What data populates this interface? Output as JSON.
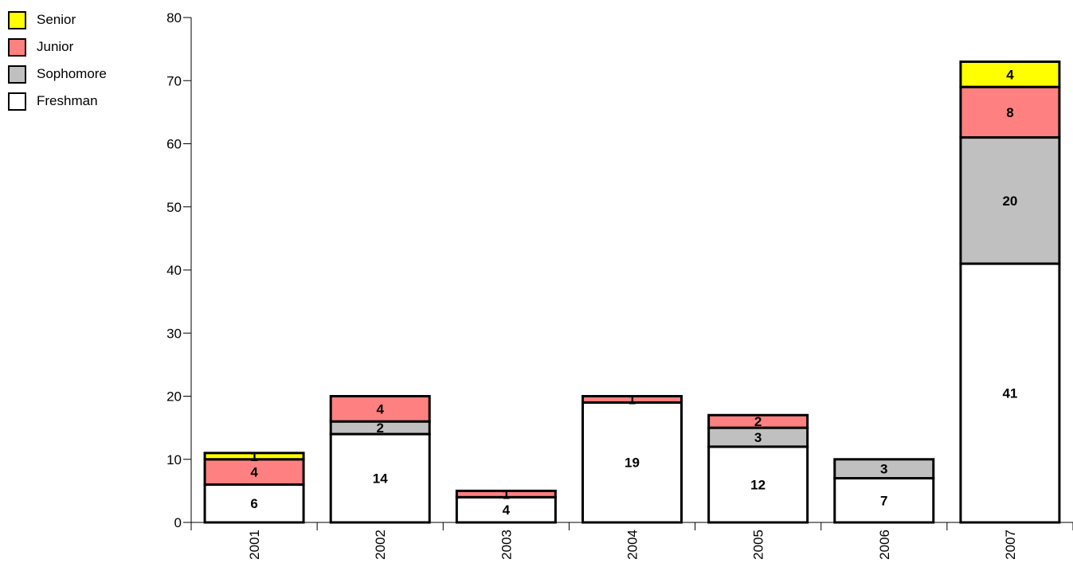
{
  "chart_data": {
    "type": "bar",
    "stacked": true,
    "title": "",
    "xlabel": "",
    "ylabel": "",
    "categories": [
      "2001",
      "2002",
      "2003",
      "2004",
      "2005",
      "2006",
      "2007"
    ],
    "ylim": [
      0,
      80
    ],
    "yticks": [
      0,
      10,
      20,
      30,
      40,
      50,
      60,
      70,
      80
    ],
    "legend_position": "top-left",
    "series": [
      {
        "name": "Freshman",
        "color": "#ffffff",
        "values": [
          6,
          14,
          4,
          19,
          12,
          7,
          41
        ]
      },
      {
        "name": "Sophomore",
        "color": "#c0c0c0",
        "values": [
          0,
          2,
          0,
          0,
          3,
          3,
          20
        ]
      },
      {
        "name": "Junior",
        "color": "#ff8080",
        "values": [
          4,
          4,
          1,
          1,
          2,
          0,
          8
        ]
      },
      {
        "name": "Senior",
        "color": "#ffff00",
        "values": [
          1,
          0,
          0,
          0,
          0,
          0,
          4
        ]
      }
    ]
  }
}
